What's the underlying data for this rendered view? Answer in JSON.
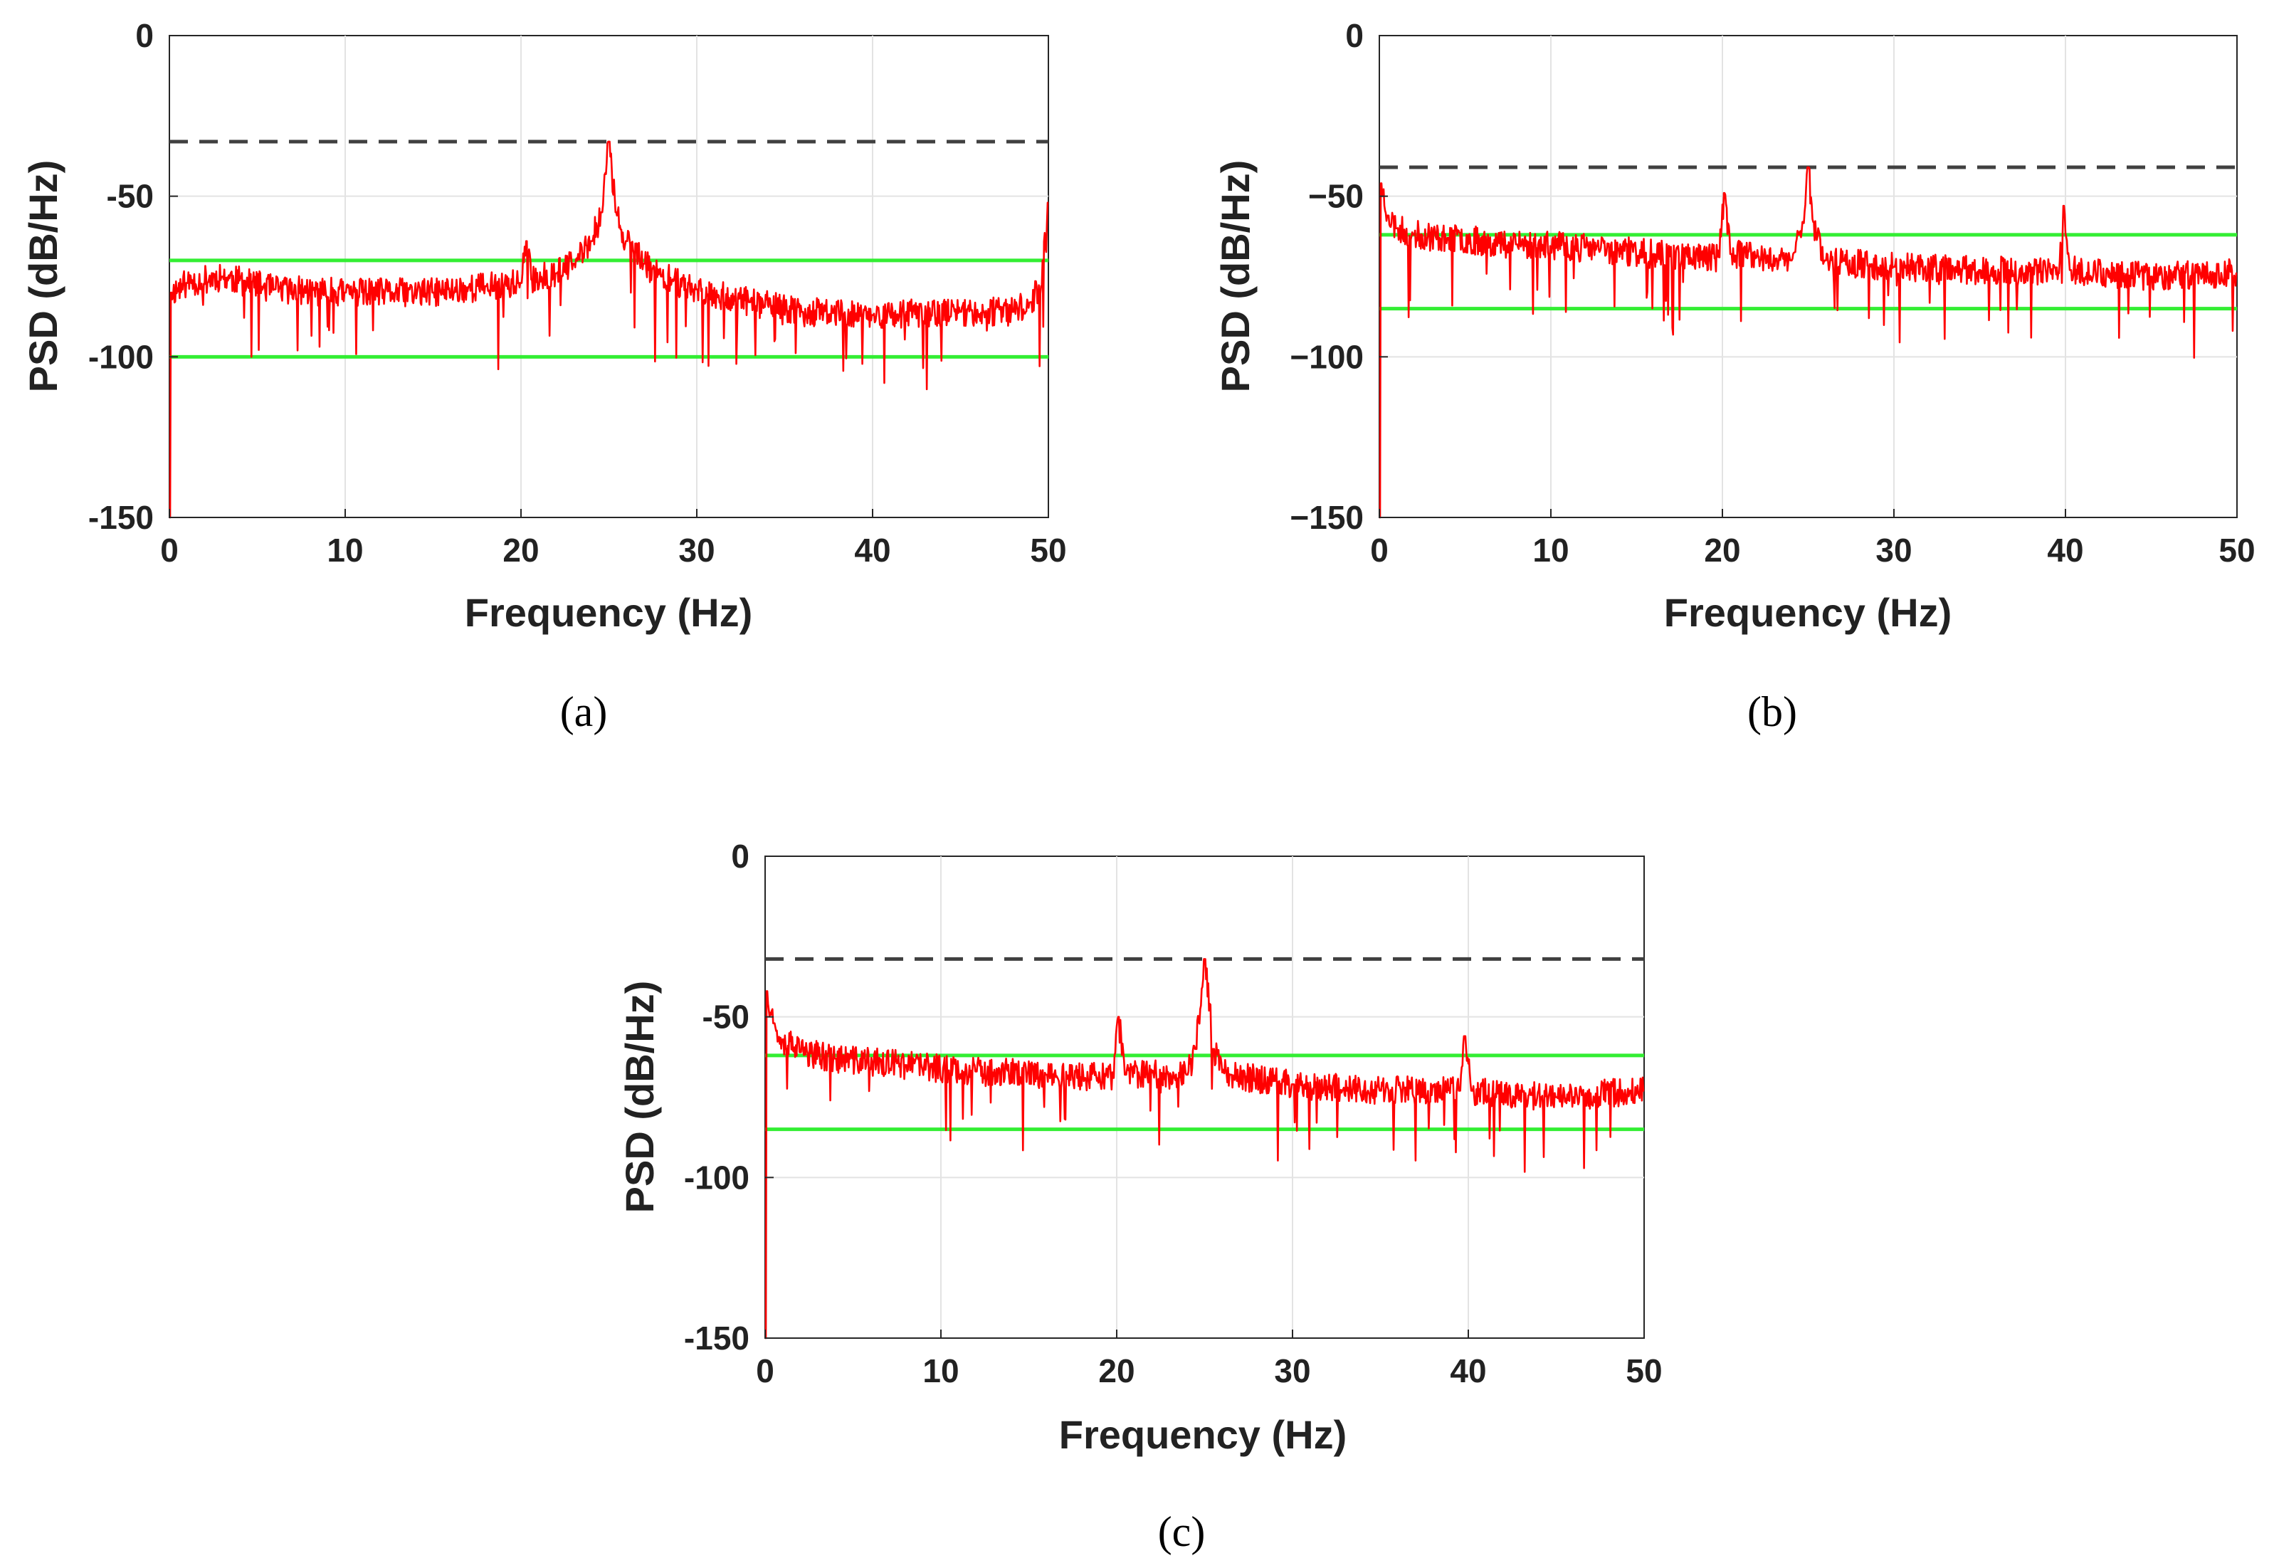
{
  "chart_data": [
    {
      "id": "a",
      "type": "line",
      "caption": "(a)",
      "xlabel": "Frequency (Hz)",
      "ylabel": "PSD (dB/Hz)",
      "xlim": [
        0,
        50
      ],
      "ylim": [
        -150,
        0
      ],
      "x_ticks": [
        0,
        10,
        20,
        30,
        40,
        50
      ],
      "x_tick_labels": [
        "0",
        "10",
        "20",
        "30",
        "40",
        "50"
      ],
      "y_ticks": [
        0,
        -50,
        -100,
        -150
      ],
      "y_tick_labels": [
        "0",
        "-50",
        "-100",
        "-150"
      ],
      "grid": true,
      "reference_lines": [
        {
          "name": "peak-threshold",
          "style": "dashed",
          "color": "#404040",
          "y": -33
        },
        {
          "name": "upper-band",
          "style": "solid",
          "color": "#33ee33",
          "y": -70
        },
        {
          "name": "lower-band",
          "style": "solid",
          "color": "#33ee33",
          "y": -100
        }
      ],
      "series": [
        {
          "name": "PSD",
          "color": "#ff0000",
          "seed": 11,
          "points": [
            [
              0,
              -150
            ],
            [
              0.1,
              -80
            ],
            [
              1,
              -77
            ],
            [
              3,
              -75
            ],
            [
              6,
              -79
            ],
            [
              10,
              -80
            ],
            [
              15,
              -80
            ],
            [
              18,
              -78
            ],
            [
              20,
              -77
            ],
            [
              20.3,
              -64
            ],
            [
              20.6,
              -76
            ],
            [
              22,
              -74
            ],
            [
              23,
              -71
            ],
            [
              24,
              -64
            ],
            [
              24.6,
              -55
            ],
            [
              25,
              -33
            ],
            [
              25.4,
              -55
            ],
            [
              26,
              -64
            ],
            [
              27,
              -71
            ],
            [
              28,
              -75
            ],
            [
              30,
              -79
            ],
            [
              33,
              -83
            ],
            [
              36,
              -86
            ],
            [
              40,
              -87
            ],
            [
              45,
              -86
            ],
            [
              48,
              -86
            ],
            [
              49,
              -83
            ],
            [
              49.6,
              -78
            ],
            [
              50,
              -52
            ]
          ]
        }
      ]
    },
    {
      "id": "b",
      "type": "line",
      "caption": "(b)",
      "xlabel": "Frequency (Hz)",
      "ylabel": "PSD (dB/Hz)",
      "xlim": [
        0,
        50
      ],
      "ylim": [
        -150,
        0
      ],
      "x_ticks": [
        0,
        10,
        20,
        30,
        40,
        50
      ],
      "x_tick_labels": [
        "0",
        "10",
        "20",
        "30",
        "40",
        "50"
      ],
      "y_ticks": [
        0,
        -50,
        -100,
        -150
      ],
      "y_tick_labels": [
        "0",
        "−50",
        "−100",
        "−150"
      ],
      "grid": true,
      "reference_lines": [
        {
          "name": "peak-threshold",
          "style": "dashed",
          "color": "#404040",
          "y": -41
        },
        {
          "name": "upper-band",
          "style": "solid",
          "color": "#33ee33",
          "y": -62
        },
        {
          "name": "lower-band",
          "style": "solid",
          "color": "#33ee33",
          "y": -85
        }
      ],
      "series": [
        {
          "name": "PSD",
          "color": "#ff0000",
          "seed": 23,
          "points": [
            [
              0,
              -150
            ],
            [
              0.1,
              -46
            ],
            [
              0.5,
              -56
            ],
            [
              1,
              -60
            ],
            [
              2,
              -62
            ],
            [
              4,
              -63
            ],
            [
              8,
              -65
            ],
            [
              12,
              -66
            ],
            [
              16,
              -68
            ],
            [
              19.8,
              -69
            ],
            [
              20.1,
              -49
            ],
            [
              20.5,
              -68
            ],
            [
              24,
              -70
            ],
            [
              24.7,
              -58
            ],
            [
              25,
              -41
            ],
            [
              25.3,
              -58
            ],
            [
              26,
              -70
            ],
            [
              30,
              -72
            ],
            [
              35,
              -73
            ],
            [
              39.6,
              -74
            ],
            [
              39.9,
              -53
            ],
            [
              40.3,
              -73
            ],
            [
              45,
              -75
            ],
            [
              50,
              -74
            ]
          ]
        }
      ]
    },
    {
      "id": "c",
      "type": "line",
      "caption": "(c)",
      "xlabel": "Frequency (Hz)",
      "ylabel": "PSD (dB/Hz)",
      "xlim": [
        0,
        50
      ],
      "ylim": [
        -150,
        0
      ],
      "x_ticks": [
        0,
        10,
        20,
        30,
        40,
        50
      ],
      "x_tick_labels": [
        "0",
        "10",
        "20",
        "30",
        "40",
        "50"
      ],
      "y_ticks": [
        0,
        -50,
        -100,
        -150
      ],
      "y_tick_labels": [
        "0",
        "-50",
        "-100",
        "-150"
      ],
      "grid": true,
      "reference_lines": [
        {
          "name": "peak-threshold",
          "style": "dashed",
          "color": "#404040",
          "y": -32
        },
        {
          "name": "upper-band",
          "style": "solid",
          "color": "#33ee33",
          "y": -62
        },
        {
          "name": "lower-band",
          "style": "solid",
          "color": "#33ee33",
          "y": -85
        }
      ],
      "series": [
        {
          "name": "PSD",
          "color": "#ff0000",
          "seed": 37,
          "points": [
            [
              0,
              -150
            ],
            [
              0.1,
              -42
            ],
            [
              0.5,
              -52
            ],
            [
              1,
              -57
            ],
            [
              2,
              -61
            ],
            [
              4,
              -63
            ],
            [
              8,
              -65
            ],
            [
              12,
              -67
            ],
            [
              16,
              -68
            ],
            [
              19.8,
              -69
            ],
            [
              20.1,
              -50
            ],
            [
              20.5,
              -68
            ],
            [
              24,
              -68
            ],
            [
              24.5,
              -60
            ],
            [
              25,
              -32
            ],
            [
              25.5,
              -60
            ],
            [
              26.5,
              -68
            ],
            [
              30,
              -71
            ],
            [
              35,
              -73
            ],
            [
              39.5,
              -73
            ],
            [
              39.8,
              -56
            ],
            [
              40.2,
              -73
            ],
            [
              45,
              -75
            ],
            [
              50,
              -73
            ]
          ]
        }
      ]
    }
  ]
}
